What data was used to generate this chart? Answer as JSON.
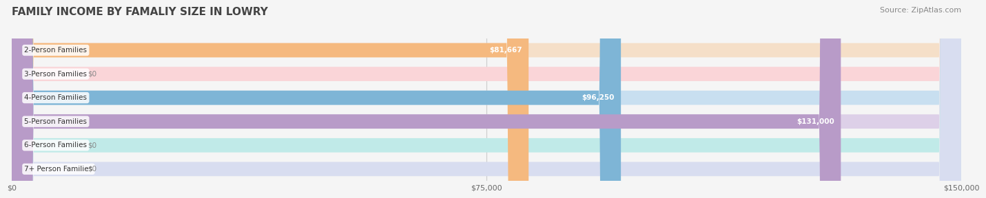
{
  "title": "FAMILY INCOME BY FAMALIY SIZE IN LOWRY",
  "source": "Source: ZipAtlas.com",
  "categories": [
    "2-Person Families",
    "3-Person Families",
    "4-Person Families",
    "5-Person Families",
    "6-Person Families",
    "7+ Person Families"
  ],
  "values": [
    81667,
    0,
    96250,
    131000,
    0,
    0
  ],
  "bar_colors": [
    "#f5b97f",
    "#f4a0a8",
    "#7eb5d6",
    "#b89bc8",
    "#7ecfca",
    "#b0b8d8"
  ],
  "bar_bg_colors": [
    "#f5dfc8",
    "#fad5d8",
    "#c8dff0",
    "#ddd0e8",
    "#c0eae8",
    "#d8ddf0"
  ],
  "value_labels": [
    "$81,667",
    "$0",
    "$96,250",
    "$131,000",
    "$0",
    "$0"
  ],
  "xlim": [
    0,
    150000
  ],
  "xtick_labels": [
    "$0",
    "$75,000",
    "$150,000"
  ],
  "xtick_values": [
    0,
    75000,
    150000
  ],
  "title_fontsize": 11,
  "source_fontsize": 8,
  "bar_height": 0.6,
  "background_color": "#f5f5f5"
}
